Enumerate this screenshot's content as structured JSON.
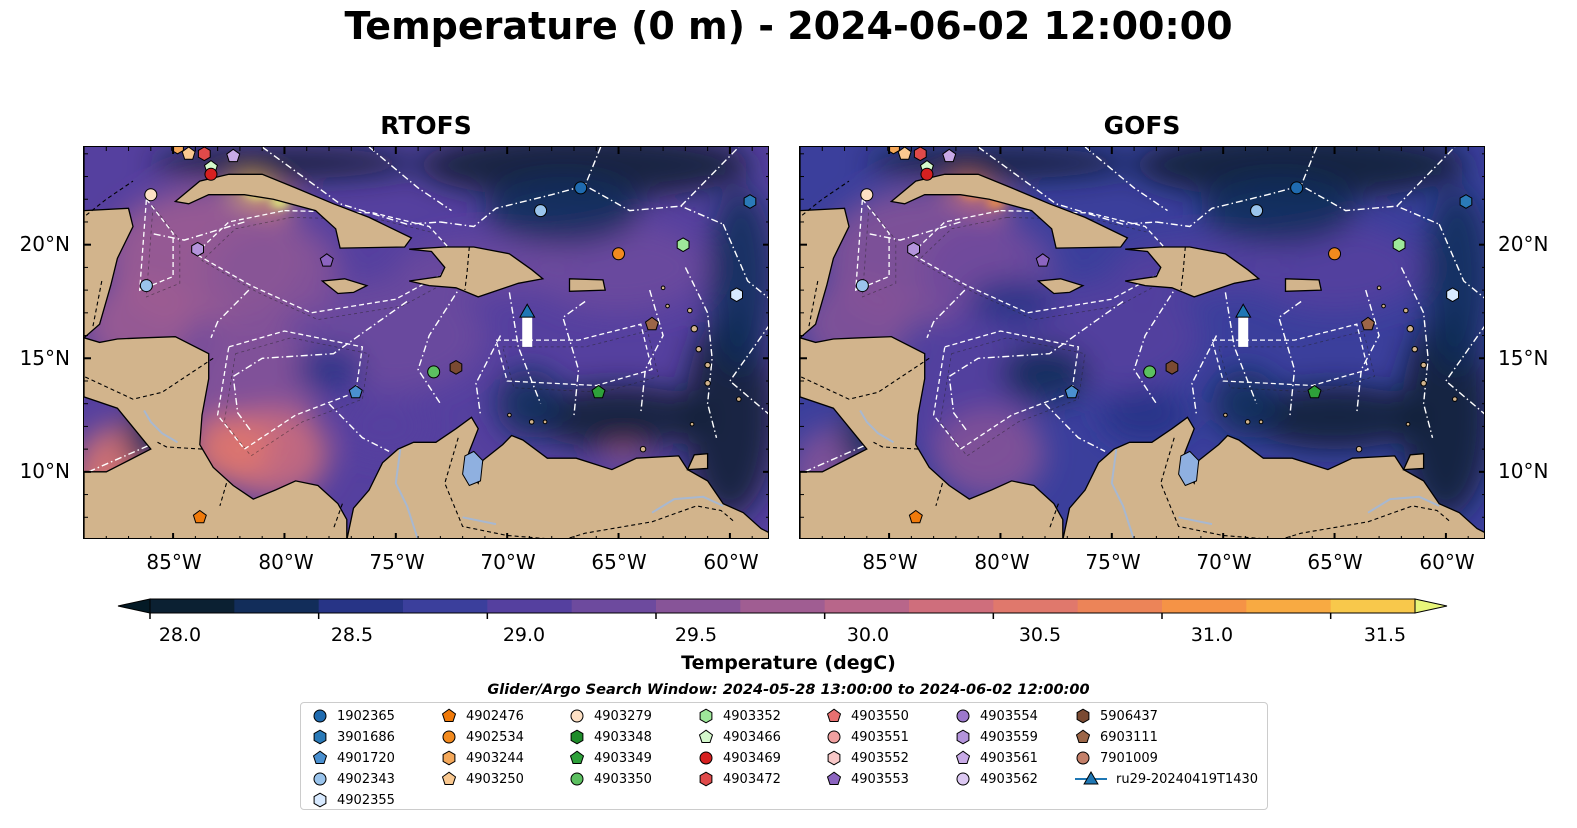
{
  "title": "Temperature (0 m) - 2024-06-02 12:00:00",
  "panels": [
    {
      "title": "RTOFS",
      "variant": "warm"
    },
    {
      "title": "GOFS",
      "variant": "cool"
    }
  ],
  "lon_ticks": [
    "85°W",
    "80°W",
    "75°W",
    "70°W",
    "65°W",
    "60°W"
  ],
  "lon_values": [
    -85,
    -80,
    -75,
    -70,
    -65,
    -60
  ],
  "lat_ticks": [
    "20°N",
    "15°N",
    "10°N"
  ],
  "lat_values": [
    20,
    15,
    10
  ],
  "extent": {
    "lon_min": -89,
    "lon_max": -58.2,
    "lat_min": 7,
    "lat_max": 24.3
  },
  "colorbar": {
    "label": "Temperature (degC)",
    "min": 28.0,
    "max": 31.75,
    "step": 0.25,
    "extend": "both",
    "ticks": [
      "28.0",
      "28.5",
      "29.0",
      "29.5",
      "30.0",
      "30.5",
      "31.0",
      "31.5"
    ],
    "tick_values": [
      28.0,
      28.5,
      29.0,
      29.5,
      30.0,
      30.5,
      31.0,
      31.5
    ],
    "colors": [
      "#0b2032",
      "#122d5a",
      "#273486",
      "#3b3f9c",
      "#55409f",
      "#6d4a9e",
      "#875498",
      "#a05d92",
      "#b8668a",
      "#cf6e7c",
      "#e0786c",
      "#ec8458",
      "#f59346",
      "#f8aa42",
      "#f8c84b"
    ],
    "under_color": "#041a26",
    "over_color": "#e8f67a"
  },
  "colors": {
    "land": "#d2b48c",
    "lake": "#8fb0e0",
    "river": "#a8b8d0",
    "ocean_base": "#3a3c96"
  },
  "search_window": "Glider/Argo Search Window: 2024-05-28 13:00:00 to 2024-06-02 12:00:00",
  "legend": [
    {
      "label": "1902365",
      "marker": "circle",
      "color": "#1f6bb0"
    },
    {
      "label": "3901686",
      "marker": "hexagon",
      "color": "#2a7ab8"
    },
    {
      "label": "4901720",
      "marker": "pentagon",
      "color": "#4a90d0"
    },
    {
      "label": "4902343",
      "marker": "circle",
      "color": "#9ac4ec"
    },
    {
      "label": "4902355",
      "marker": "hexagon",
      "color": "#d8eaff"
    },
    {
      "label": "4902476",
      "marker": "pentagon",
      "color": "#f07a0a"
    },
    {
      "label": "4902534",
      "marker": "circle",
      "color": "#f28a1e"
    },
    {
      "label": "4903244",
      "marker": "hexagon",
      "color": "#f4a85a"
    },
    {
      "label": "4903250",
      "marker": "pentagon",
      "color": "#f9c890"
    },
    {
      "label": "4903279",
      "marker": "circle",
      "color": "#fde0c4"
    },
    {
      "label": "4903348",
      "marker": "hexagon",
      "color": "#1e8c2a"
    },
    {
      "label": "4903349",
      "marker": "pentagon",
      "color": "#2ea03a"
    },
    {
      "label": "4903350",
      "marker": "circle",
      "color": "#5cc060"
    },
    {
      "label": "4903352",
      "marker": "hexagon",
      "color": "#9ee89a"
    },
    {
      "label": "4903466",
      "marker": "pentagon",
      "color": "#d4f8cc"
    },
    {
      "label": "4903469",
      "marker": "circle",
      "color": "#d62020"
    },
    {
      "label": "4903472",
      "marker": "hexagon",
      "color": "#e04a4a"
    },
    {
      "label": "4903550",
      "marker": "pentagon",
      "color": "#e87070"
    },
    {
      "label": "4903551",
      "marker": "circle",
      "color": "#f0a0a0"
    },
    {
      "label": "4903552",
      "marker": "hexagon",
      "color": "#f8c8c8"
    },
    {
      "label": "4903553",
      "marker": "pentagon",
      "color": "#8c64c0"
    },
    {
      "label": "4903554",
      "marker": "circle",
      "color": "#9c78cc"
    },
    {
      "label": "4903559",
      "marker": "hexagon",
      "color": "#b494dc"
    },
    {
      "label": "4903561",
      "marker": "pentagon",
      "color": "#c8aae6"
    },
    {
      "label": "4903562",
      "marker": "circle",
      "color": "#dcc8f2"
    },
    {
      "label": "5906437",
      "marker": "hexagon",
      "color": "#7a4a32"
    },
    {
      "label": "6903111",
      "marker": "pentagon",
      "color": "#9c6648"
    },
    {
      "label": "7901009",
      "marker": "circle",
      "color": "#c4806a"
    },
    {
      "label": "ru29-20240419T1430",
      "marker": "glider",
      "color": "#1f77b4"
    }
  ],
  "floats_on_map": [
    {
      "id": "1902365",
      "lon": -66.7,
      "lat": 22.5
    },
    {
      "id": "3901686",
      "lon": -59.1,
      "lat": 21.9
    },
    {
      "id": "4901720",
      "lon": -76.8,
      "lat": 13.5
    },
    {
      "id": "4902343",
      "lon": -68.5,
      "lat": 21.5
    },
    {
      "id": "4902343",
      "lon": -86.2,
      "lat": 18.2
    },
    {
      "id": "4902355",
      "lon": -59.7,
      "lat": 17.8
    },
    {
      "id": "4902476",
      "lon": -83.8,
      "lat": 8.0
    },
    {
      "id": "4902534",
      "lon": -65.0,
      "lat": 19.6
    },
    {
      "id": "4903244",
      "lon": -84.8,
      "lat": 24.3
    },
    {
      "id": "4903250",
      "lon": -84.3,
      "lat": 24.0
    },
    {
      "id": "4903279",
      "lon": -86.0,
      "lat": 22.2
    },
    {
      "id": "4903349",
      "lon": -65.9,
      "lat": 13.5
    },
    {
      "id": "4903350",
      "lon": -73.3,
      "lat": 14.4
    },
    {
      "id": "4903352",
      "lon": -62.1,
      "lat": 20.0
    },
    {
      "id": "4903466",
      "lon": -83.3,
      "lat": 23.4
    },
    {
      "id": "4903469",
      "lon": -83.3,
      "lat": 23.1
    },
    {
      "id": "4903472",
      "lon": -83.6,
      "lat": 24.0
    },
    {
      "id": "4903553",
      "lon": -78.1,
      "lat": 19.3
    },
    {
      "id": "4903559",
      "lon": -83.9,
      "lat": 19.8
    },
    {
      "id": "4903561",
      "lon": -82.3,
      "lat": 23.9
    },
    {
      "id": "5906437",
      "lon": -72.3,
      "lat": 14.6
    },
    {
      "id": "6903111",
      "lon": -63.5,
      "lat": 16.5
    }
  ],
  "glider_track": {
    "id": "ru29-20240419T1430",
    "lon": [
      -69.1,
      -69.1
    ],
    "lat": [
      15.5,
      17.0
    ]
  }
}
